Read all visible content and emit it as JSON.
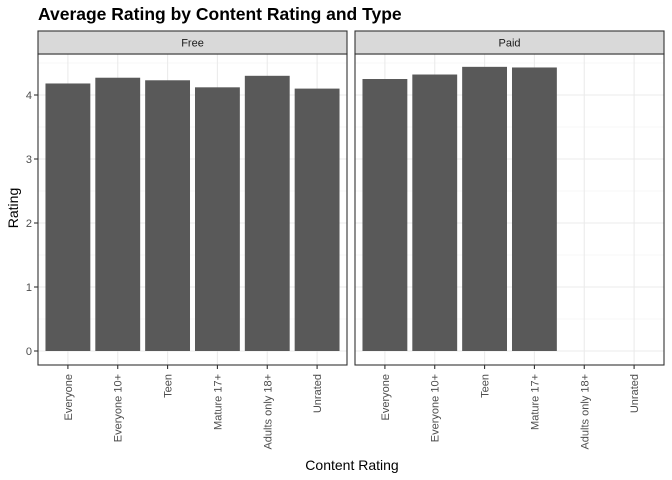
{
  "chart_data": {
    "type": "bar",
    "title": "Average Rating by Content Rating and Type",
    "xlabel": "Content Rating",
    "ylabel": "Rating",
    "ylim": [
      0,
      4.6
    ],
    "yticks": [
      "0",
      "1",
      "2",
      "3",
      "4"
    ],
    "grid": true,
    "legend": "none",
    "categories": [
      "Everyone",
      "Everyone 10+",
      "Teen",
      "Mature 17+",
      "Adults only 18+",
      "Unrated"
    ],
    "bar_color": "#595959",
    "facets": [
      {
        "name": "Free",
        "values": [
          4.18,
          4.27,
          4.23,
          4.12,
          4.3,
          4.1
        ]
      },
      {
        "name": "Paid",
        "values": [
          4.25,
          4.32,
          4.44,
          4.43,
          null,
          null
        ]
      }
    ]
  }
}
